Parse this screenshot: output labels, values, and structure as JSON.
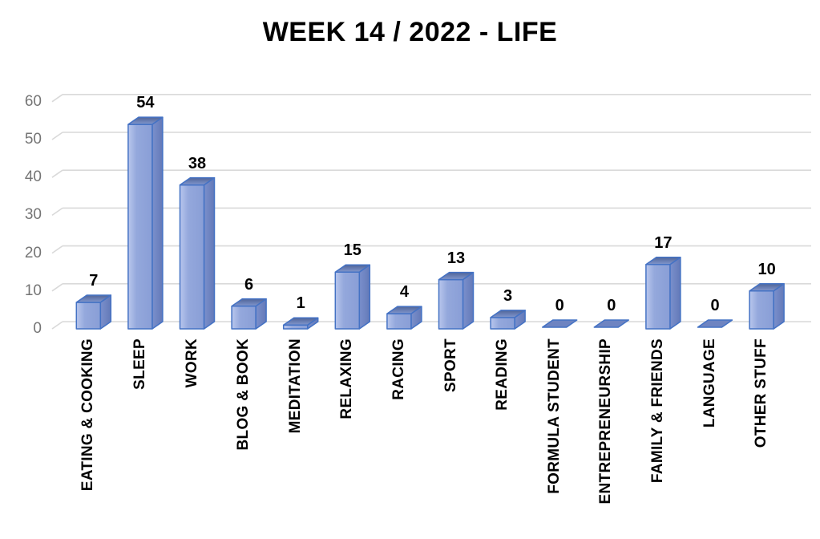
{
  "chart_data": {
    "type": "bar",
    "style": "3d-excel",
    "title": "WEEK 14 / 2022 - LIFE",
    "categories": [
      "EATING & COOKING",
      "SLEEP",
      "WORK",
      "BLOG & BOOK",
      "MEDITATION",
      "RELAXING",
      "RACING",
      "SPORT",
      "READING",
      "FORMULA STUDENT",
      "ENTREPRENEURSHIP",
      "FAMILY & FRIENDS",
      "LANGUAGE",
      "OTHER STUFF"
    ],
    "values": [
      7,
      54,
      38,
      6,
      1,
      15,
      4,
      13,
      3,
      0,
      0,
      17,
      0,
      10
    ],
    "data_labels_shown": true,
    "yticks": [
      0,
      10,
      20,
      30,
      40,
      50,
      60
    ],
    "ylim": [
      0,
      60
    ],
    "xlabel": "",
    "ylabel": "",
    "grid": true,
    "legend": false,
    "colors": {
      "bar_front_light": "#B6C4EB",
      "bar_front": "#8EA3D9",
      "bar_side": "#6E84C1",
      "bar_top_dark": "#4F6498",
      "bar_top_light": "#8297CE",
      "bar_outline": "#4472C4",
      "gridline": "#D9D9D9",
      "axis_tick_label": "#757575",
      "data_label": "#000000",
      "title": "#000000",
      "background": "#FFFFFF"
    }
  }
}
